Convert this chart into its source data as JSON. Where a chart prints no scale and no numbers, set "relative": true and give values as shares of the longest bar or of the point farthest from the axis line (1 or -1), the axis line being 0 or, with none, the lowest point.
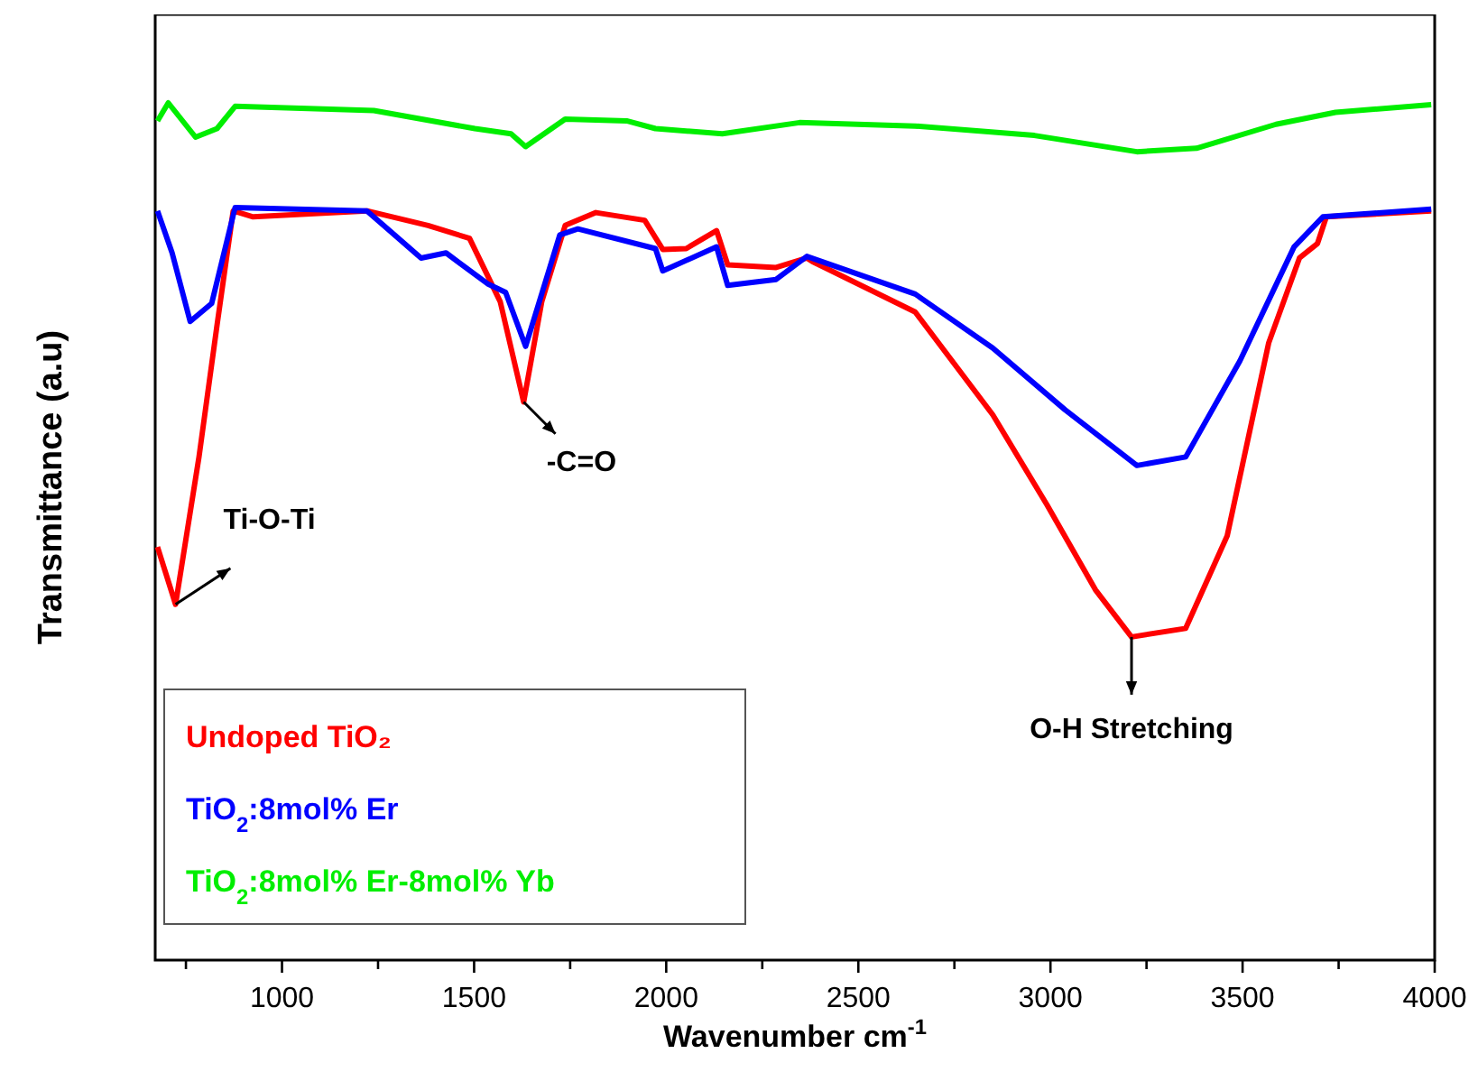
{
  "chart_data": {
    "type": "line",
    "relative": true,
    "xlabel": "Wavenumber cm$^{-1}$",
    "ylabel": "Transmittance (a.u)",
    "xlim": [
      670,
      4000
    ],
    "xticks": [
      {
        "value": 750,
        "label": null
      },
      1000,
      {
        "value": 1250,
        "label": null
      },
      1500,
      {
        "value": 1750,
        "label": null
      },
      2000,
      {
        "value": 2250,
        "label": null
      },
      2500,
      {
        "value": 2750,
        "label": null
      },
      3000,
      {
        "value": 3250,
        "label": null
      },
      3500,
      {
        "value": 3750,
        "label": null
      },
      4000
    ],
    "tick_labels": "x",
    "legend": "bottom left",
    "grid": false,
    "line_style": "solid",
    "marker": "none",
    "series": [
      {
        "name": "Undoped TiO₂",
        "color": "#ff0000",
        "x": [
          676,
          723,
          784,
          831,
          873,
          925,
          1221,
          1380,
          1488,
          1568,
          1629,
          1676,
          1737,
          1817,
          1944,
          1991,
          2052,
          2131,
          2160,
          2286,
          2366,
          2380,
          2648,
          2850,
          2991,
          3117,
          3211,
          3352,
          3460,
          3568,
          3648,
          3695,
          3718,
          3991
        ],
        "values": [
          0.482,
          0.415,
          0.587,
          0.741,
          0.874,
          0.867,
          0.874,
          0.857,
          0.842,
          0.768,
          0.651,
          0.768,
          0.857,
          0.872,
          0.863,
          0.829,
          0.83,
          0.851,
          0.811,
          0.808,
          0.819,
          0.815,
          0.756,
          0.636,
          0.531,
          0.432,
          0.377,
          0.387,
          0.495,
          0.72,
          0.819,
          0.836,
          0.867,
          0.874
        ]
      },
      {
        "name": "TiO$_{2}$:8mol% Er",
        "color": "#0000ff",
        "x": [
          676,
          714,
          761,
          817,
          878,
          1221,
          1362,
          1427,
          1535,
          1582,
          1634,
          1723,
          1770,
          1972,
          1991,
          2131,
          2160,
          2286,
          2366,
          2648,
          2850,
          3038,
          3225,
          3352,
          3493,
          3634,
          3709,
          3991
        ],
        "values": [
          0.874,
          0.825,
          0.745,
          0.766,
          0.878,
          0.874,
          0.819,
          0.825,
          0.789,
          0.779,
          0.716,
          0.846,
          0.853,
          0.83,
          0.804,
          0.832,
          0.787,
          0.794,
          0.821,
          0.777,
          0.714,
          0.642,
          0.577,
          0.587,
          0.699,
          0.832,
          0.867,
          0.876
        ]
      },
      {
        "name": "TiO$_{2}$:8mol% Er-8mol% Yb",
        "color": "#00ee00",
        "x": [
          676,
          704,
          775,
          831,
          878,
          1239,
          1502,
          1596,
          1634,
          1737,
          1897,
          1972,
          2146,
          2347,
          2648,
          2958,
          3225,
          3380,
          3587,
          3742,
          3991
        ],
        "values": [
          0.979,
          1.0,
          0.96,
          0.97,
          0.996,
          0.991,
          0.97,
          0.964,
          0.949,
          0.981,
          0.979,
          0.97,
          0.964,
          0.977,
          0.973,
          0.962,
          0.943,
          0.947,
          0.975,
          0.989,
          0.998
        ]
      }
    ],
    "annotations": [
      {
        "text": "Ti-O-Ti",
        "x": 723,
        "y": 0.415
      },
      {
        "text": "-C=O",
        "x": 1629,
        "y": 0.651
      },
      {
        "text": "O-H Stretching",
        "x": 3211,
        "y": 0.377
      }
    ]
  }
}
